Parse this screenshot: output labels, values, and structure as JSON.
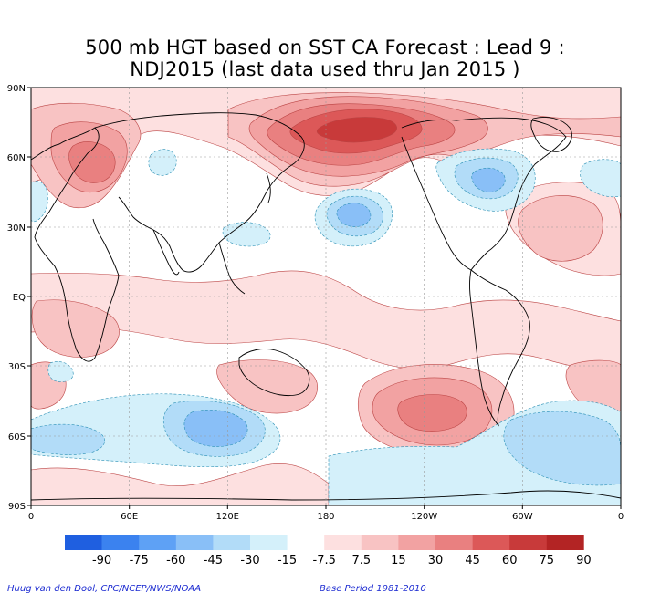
{
  "title_line1": "500 mb HGT based on SST CA Forecast : Lead 9 :",
  "title_line2": "NDJ2015 (last data used thru Jan 2015 )",
  "lat_labels": [
    "90N",
    "60N",
    "30N",
    "EQ",
    "30S",
    "60S",
    "90S"
  ],
  "lon_labels": [
    "0",
    "60E",
    "120E",
    "180",
    "120W",
    "60W",
    "0"
  ],
  "legend": {
    "labels": [
      "-90",
      "-75",
      "-60",
      "-45",
      "-30",
      "-15",
      "-7.5",
      "7.5",
      "15",
      "30",
      "45",
      "60",
      "75",
      "90"
    ],
    "colors": [
      "#1f5fe0",
      "#3b82ef",
      "#5ea1f5",
      "#89bff7",
      "#b2dcf8",
      "#d4f0fa",
      "#ffffff",
      "#fde0e0",
      "#f8c3c3",
      "#f2a2a2",
      "#e98080",
      "#dc5858",
      "#c83a3a",
      "#b32424"
    ]
  },
  "credit_left": "Huug van den Dool, CPC/NCEP/NWS/NOAA",
  "credit_right": "Base Period 1981-2010",
  "map_data": {
    "variable": "500 mb geopotential height anomaly",
    "projection": "equirectangular 0-360",
    "features": [
      {
        "type": "positive",
        "lat": 62,
        "lon": 180,
        "level": 75
      },
      {
        "type": "positive",
        "lat": 56,
        "lon": 40,
        "level": 45
      },
      {
        "type": "positive",
        "lat": 30,
        "lon": 305,
        "level": 30
      },
      {
        "type": "positive",
        "lat": -45,
        "lon": 245,
        "level": 60
      },
      {
        "type": "negative",
        "lat": 36,
        "lon": 180,
        "level": -45
      },
      {
        "type": "negative",
        "lat": 50,
        "lon": 283,
        "level": -30
      },
      {
        "type": "negative",
        "lat": -58,
        "lon": 120,
        "level": -45
      },
      {
        "type": "negative",
        "lat": -60,
        "lon": 320,
        "level": -30
      }
    ]
  }
}
